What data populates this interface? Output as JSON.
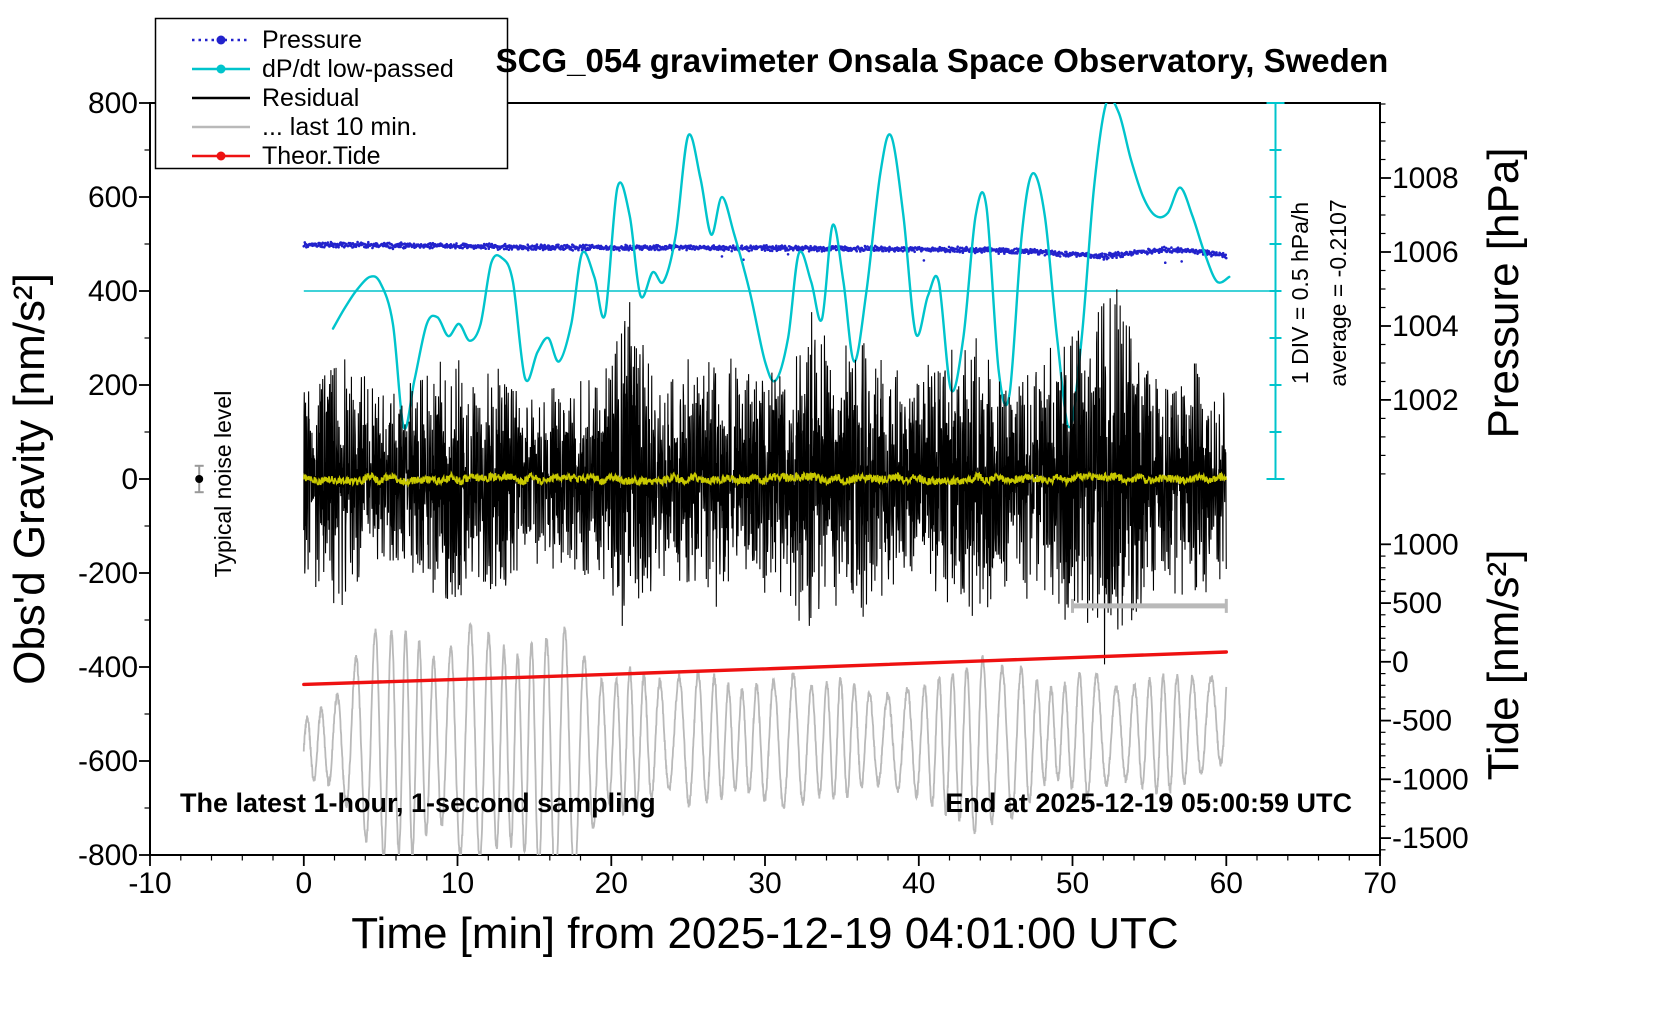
{
  "title": "SCG_054 gravimeter Onsala Space Observatory, Sweden",
  "axes": {
    "x": {
      "label": "Time [min] from 2025-12-19 04:01:00 UTC",
      "min": -10,
      "max": 70,
      "major": 10,
      "minor": 2,
      "ticks": [
        -10,
        0,
        10,
        20,
        30,
        40,
        50,
        60,
        70
      ]
    },
    "y_left": {
      "label": "Obs'd Gravity [nm/s²]",
      "min": -800,
      "max": 800,
      "major": 200,
      "minor": 100,
      "ticks": [
        -800,
        -600,
        -400,
        -200,
        0,
        200,
        400,
        600,
        800
      ]
    },
    "pressure": {
      "label": "Pressure [hPa]",
      "ticks": [
        1002,
        1004,
        1006,
        1008
      ],
      "minor_step": 0.5,
      "minor_from": 1000,
      "minor_to": 1010,
      "grav_at_1006": 483,
      "grav_per_hpa": 78.7
    },
    "tide": {
      "label": "Tide [nm/s²]",
      "ticks": [
        -1500,
        -1000,
        -500,
        0,
        500,
        1000
      ],
      "minor_step": 100,
      "minor_from": -1600,
      "minor_to": 1000,
      "grav_at_0": -389,
      "grav_per_unit": 0.25
    },
    "dpdt": {
      "unit": "hPa/h",
      "grav_at_zero": 400,
      "grav_per_unit": 200
    }
  },
  "legend": [
    {
      "label": "Pressure",
      "color": "#2222cc",
      "marker": "dotted-line-dot"
    },
    {
      "label": "dP/dt low-passed",
      "color": "#00c4cc",
      "marker": "line-dot"
    },
    {
      "label": "Residual",
      "color": "#000000",
      "marker": "line"
    },
    {
      "label": "... last 10 min.",
      "color": "#b9b9b9",
      "marker": "line"
    },
    {
      "label": "Theor.Tide",
      "color": "#ee1111",
      "marker": "line-dot"
    }
  ],
  "annotations": {
    "bottom_left": "The latest 1-hour, 1-second sampling",
    "bottom_right": "End at 2025-12-19 05:00:59 UTC",
    "noise_label": "Typical noise level",
    "div_label": "1 DIV = 0.5 hPa/h",
    "average_label": "average = -0.2107"
  },
  "chart_data": {
    "type": "line",
    "x_unit": "minutes",
    "series": [
      {
        "name": "Pressure",
        "style": "dots",
        "axis": "pressure",
        "color": "#2222cc",
        "seed": 77,
        "step_s": 2,
        "noise_sd": 0.04,
        "outlier_prob": 0.006,
        "drift": [
          [
            0,
            1006.2
          ],
          [
            8,
            1006.17
          ],
          [
            16,
            1006.12
          ],
          [
            24,
            1006.12
          ],
          [
            32,
            1006.1
          ],
          [
            40,
            1006.08
          ],
          [
            47,
            1006.02
          ],
          [
            50,
            1005.93
          ],
          [
            52,
            1005.88
          ],
          [
            54,
            1005.98
          ],
          [
            56,
            1006.06
          ],
          [
            58,
            1006.02
          ],
          [
            60,
            1005.9
          ]
        ]
      },
      {
        "name": "dP/dt low-passed",
        "style": "smooth",
        "axis": "dpdt",
        "color": "#00c4cc",
        "width": 2.4,
        "points": [
          [
            1.9,
            -0.4
          ],
          [
            2.6,
            -0.2
          ],
          [
            3.4,
            0
          ],
          [
            4.3,
            0.15
          ],
          [
            5,
            0.08
          ],
          [
            5.8,
            -0.35
          ],
          [
            6.5,
            -1.45
          ],
          [
            7.2,
            -0.95
          ],
          [
            8,
            -0.35
          ],
          [
            8.7,
            -0.28
          ],
          [
            9.4,
            -0.48
          ],
          [
            10.1,
            -0.35
          ],
          [
            10.8,
            -0.53
          ],
          [
            11.5,
            -0.35
          ],
          [
            12.2,
            0.3
          ],
          [
            12.9,
            0.35
          ],
          [
            13.6,
            0.1
          ],
          [
            14.4,
            -0.93
          ],
          [
            15.2,
            -0.65
          ],
          [
            15.9,
            -0.5
          ],
          [
            16.6,
            -0.75
          ],
          [
            17.4,
            -0.35
          ],
          [
            18.1,
            0.4
          ],
          [
            18.9,
            0.15
          ],
          [
            19.6,
            -0.25
          ],
          [
            20.4,
            1.1
          ],
          [
            21.2,
            0.8
          ],
          [
            21.9,
            -0.05
          ],
          [
            22.7,
            0.2
          ],
          [
            23.4,
            0.1
          ],
          [
            24.2,
            0.6
          ],
          [
            25,
            1.65
          ],
          [
            25.8,
            1.2
          ],
          [
            26.5,
            0.6
          ],
          [
            27.2,
            1
          ],
          [
            28,
            0.6
          ],
          [
            29,
            0
          ],
          [
            30,
            -0.75
          ],
          [
            30.7,
            -0.95
          ],
          [
            31.5,
            -0.5
          ],
          [
            32.2,
            0.4
          ],
          [
            33,
            0.1
          ],
          [
            33.7,
            -0.3
          ],
          [
            34.4,
            0.7
          ],
          [
            35.1,
            0.1
          ],
          [
            35.8,
            -0.75
          ],
          [
            36.6,
            0
          ],
          [
            37.5,
            1.25
          ],
          [
            38.2,
            1.65
          ],
          [
            39,
            0.8
          ],
          [
            39.8,
            -0.45
          ],
          [
            40.6,
            -0.05
          ],
          [
            41.3,
            0.1
          ],
          [
            42.1,
            -1.05
          ],
          [
            42.9,
            -0.5
          ],
          [
            43.7,
            0.8
          ],
          [
            44.4,
            0.9
          ],
          [
            45.2,
            -0.85
          ],
          [
            45.9,
            -1.1
          ],
          [
            46.7,
            0.6
          ],
          [
            47.4,
            1.25
          ],
          [
            48.2,
            0.8
          ],
          [
            49,
            -0.5
          ],
          [
            49.8,
            -1.45
          ],
          [
            50.6,
            -0.5
          ],
          [
            51.4,
            1.1
          ],
          [
            52.2,
            2
          ],
          [
            53,
            1.9
          ],
          [
            53.8,
            1.4
          ],
          [
            54.6,
            1
          ],
          [
            55.4,
            0.8
          ],
          [
            56.2,
            0.83
          ],
          [
            57,
            1.1
          ],
          [
            57.8,
            0.8
          ],
          [
            58.6,
            0.4
          ],
          [
            59.4,
            0.1
          ],
          [
            60.2,
            0.15
          ]
        ]
      },
      {
        "name": "Residual",
        "style": "noise",
        "axis": "gravity",
        "color": "#000000",
        "seed": 1234,
        "step_s": 1,
        "width": 1.1,
        "osc_period_s": 6.3,
        "osc_frac": 0.55,
        "rand_frac": 0.75,
        "envelope": [
          [
            0,
            170
          ],
          [
            2,
            230
          ],
          [
            3,
            190
          ],
          [
            5,
            150
          ],
          [
            7,
            160
          ],
          [
            9,
            200
          ],
          [
            10,
            230
          ],
          [
            11,
            160
          ],
          [
            12,
            180
          ],
          [
            13,
            200
          ],
          [
            14,
            150
          ],
          [
            15,
            140
          ],
          [
            16,
            160
          ],
          [
            17,
            150
          ],
          [
            18,
            170
          ],
          [
            19,
            160
          ],
          [
            20,
            200
          ],
          [
            21,
            300
          ],
          [
            22,
            260
          ],
          [
            23,
            160
          ],
          [
            24,
            170
          ],
          [
            25,
            210
          ],
          [
            26,
            180
          ],
          [
            27,
            230
          ],
          [
            28,
            200
          ],
          [
            29,
            180
          ],
          [
            30,
            200
          ],
          [
            31,
            190
          ],
          [
            32,
            230
          ],
          [
            33,
            280
          ],
          [
            34,
            230
          ],
          [
            35,
            210
          ],
          [
            36,
            250
          ],
          [
            37,
            200
          ],
          [
            38,
            220
          ],
          [
            39,
            180
          ],
          [
            40,
            170
          ],
          [
            41,
            200
          ],
          [
            42,
            210
          ],
          [
            43,
            230
          ],
          [
            44,
            240
          ],
          [
            45,
            190
          ],
          [
            46,
            180
          ],
          [
            47,
            200
          ],
          [
            48,
            210
          ],
          [
            49,
            230
          ],
          [
            50,
            260
          ],
          [
            51,
            280
          ],
          [
            52,
            340
          ],
          [
            53,
            310
          ],
          [
            54,
            230
          ],
          [
            55,
            190
          ],
          [
            56,
            170
          ],
          [
            57,
            230
          ],
          [
            58,
            210
          ],
          [
            59,
            180
          ],
          [
            60,
            160
          ]
        ]
      },
      {
        "name": "Residual low-passed",
        "style": "noise",
        "axis": "gravity",
        "color": "#c8c800",
        "seed": 55,
        "step_s": 2,
        "width": 1.6,
        "osc_period_s": 170,
        "osc_frac": 0.4,
        "rand_frac": 0.7,
        "envelope": [
          [
            0,
            12
          ],
          [
            60,
            12
          ]
        ]
      },
      {
        "name": "... last 10 min.",
        "style": "osc",
        "axis": "gravity",
        "color": "#b9b9b9",
        "seed": 9,
        "width": 1.8,
        "period_min": 1.05,
        "phase_mod": 1.3,
        "center": [
          [
            0,
            -575
          ],
          [
            3,
            -555
          ],
          [
            6,
            -560
          ],
          [
            9,
            -565
          ],
          [
            12,
            -560
          ],
          [
            15,
            -585
          ],
          [
            17,
            -605
          ],
          [
            20,
            -560
          ],
          [
            24,
            -545
          ],
          [
            28,
            -555
          ],
          [
            32,
            -560
          ],
          [
            36,
            -550
          ],
          [
            40,
            -560
          ],
          [
            44,
            -570
          ],
          [
            48,
            -545
          ],
          [
            52,
            -540
          ],
          [
            56,
            -545
          ],
          [
            59,
            -520
          ],
          [
            60,
            -470
          ]
        ],
        "amplitude": [
          [
            0,
            60
          ],
          [
            2,
            90
          ],
          [
            4,
            210
          ],
          [
            5,
            250
          ],
          [
            6,
            230
          ],
          [
            7,
            240
          ],
          [
            8,
            190
          ],
          [
            9,
            170
          ],
          [
            10,
            230
          ],
          [
            11,
            260
          ],
          [
            12,
            230
          ],
          [
            13,
            210
          ],
          [
            14,
            200
          ],
          [
            15,
            240
          ],
          [
            16,
            260
          ],
          [
            17,
            290
          ],
          [
            18,
            230
          ],
          [
            19,
            150
          ],
          [
            20,
            120
          ],
          [
            21,
            160
          ],
          [
            22,
            135
          ],
          [
            23,
            120
          ],
          [
            24,
            110
          ],
          [
            25,
            145
          ],
          [
            26,
            135
          ],
          [
            27,
            130
          ],
          [
            28,
            105
          ],
          [
            29,
            110
          ],
          [
            30,
            125
          ],
          [
            31,
            135
          ],
          [
            32,
            145
          ],
          [
            33,
            115
          ],
          [
            34,
            120
          ],
          [
            35,
            130
          ],
          [
            36,
            105
          ],
          [
            37,
            95
          ],
          [
            38,
            95
          ],
          [
            39,
            110
          ],
          [
            40,
            115
          ],
          [
            41,
            135
          ],
          [
            42,
            150
          ],
          [
            43,
            165
          ],
          [
            44,
            195
          ],
          [
            45,
            155
          ],
          [
            46,
            165
          ],
          [
            47,
            145
          ],
          [
            48,
            105
          ],
          [
            49,
            95
          ],
          [
            50,
            115
          ],
          [
            51,
            135
          ],
          [
            52,
            115
          ],
          [
            53,
            95
          ],
          [
            54,
            105
          ],
          [
            55,
            115
          ],
          [
            56,
            125
          ],
          [
            57,
            115
          ],
          [
            58,
            105
          ],
          [
            59,
            95
          ],
          [
            60,
            130
          ]
        ]
      },
      {
        "name": "Theor.Tide",
        "style": "smooth",
        "axis": "tide",
        "color": "#ee1111",
        "width": 3.4,
        "points": [
          [
            0,
            -192
          ],
          [
            15,
            -128
          ],
          [
            30,
            -60
          ],
          [
            45,
            12
          ],
          [
            60,
            84
          ]
        ]
      }
    ],
    "markers": {
      "average_line": {
        "dpdt_value": 0,
        "x_from": 0,
        "x_to": 63.2,
        "color": "#00c4cc"
      },
      "div_scale_bar": {
        "x": 63.2,
        "dpdt_from": -2,
        "dpdt_to": 2,
        "divisions": 8,
        "color": "#00c4cc"
      },
      "ten_min_bar": {
        "x_from": 50,
        "x_to": 60,
        "gravity": -270,
        "color": "#b9b9b9"
      },
      "noise_marker": {
        "x": -6.8,
        "gravity": 0,
        "error": 28,
        "bar_color": "#999999",
        "dot_color": "#000000"
      }
    }
  }
}
